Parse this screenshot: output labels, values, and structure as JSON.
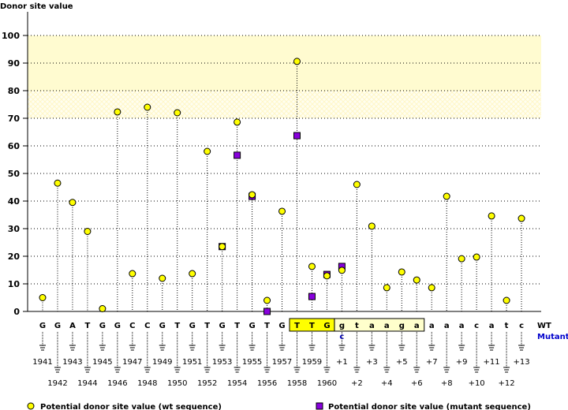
{
  "chart_data": {
    "type": "scatter",
    "title": "Donor site value",
    "ylabel": "Donor site value",
    "ylim": [
      0,
      100
    ],
    "yticks": [
      0,
      10,
      20,
      30,
      40,
      50,
      60,
      70,
      80,
      90,
      100
    ],
    "grid": true,
    "bands": [
      {
        "from": 80,
        "to": 100,
        "color": "#fffbd0"
      },
      {
        "from": 70,
        "to": 80,
        "color": "#fffde8",
        "pattern": "hatched"
      }
    ],
    "positions": [
      "1941",
      "1942",
      "1943",
      "1944",
      "1945",
      "1946",
      "1947",
      "1948",
      "1949",
      "1950",
      "1951",
      "1952",
      "1953",
      "1954",
      "1955",
      "1956",
      "1957",
      "1958",
      "1959",
      "1960",
      "+1",
      "+2",
      "+3",
      "+4",
      "+5",
      "+6",
      "+7",
      "+8",
      "+9",
      "+10",
      "+11",
      "+12",
      "+13"
    ],
    "wt_sequence": [
      "G",
      "G",
      "A",
      "T",
      "G",
      "G",
      "C",
      "C",
      "G",
      "T",
      "G",
      "T",
      "G",
      "T",
      "G",
      "T",
      "G",
      "T",
      "T",
      "G",
      "g",
      "t",
      "a",
      "a",
      "g",
      "a",
      "a",
      "a",
      "a",
      "c",
      "a",
      "t",
      "c"
    ],
    "mutant_sequence": {
      "+1": "c"
    },
    "exon_highlight": [
      "1958",
      "1959",
      "1960"
    ],
    "intron_highlight": [
      "+1",
      "+2",
      "+3",
      "+4",
      "+5",
      "+6"
    ],
    "row_labels": {
      "wt": "WT",
      "mutant": "Mutant"
    },
    "series": [
      {
        "name": "Potential donor site value (wt sequence)",
        "marker": "circle",
        "color": "#ffff00",
        "values": [
          5,
          46.5,
          39.5,
          29,
          1,
          72.3,
          13.7,
          74,
          12,
          72,
          13.7,
          58,
          23.5,
          68.6,
          42.3,
          4,
          36.3,
          90.6,
          16.3,
          12.9,
          14.9,
          46,
          30.9,
          8.6,
          14.3,
          11.4,
          8.6,
          41.7,
          19.1,
          19.7,
          34.6,
          4,
          33.7
        ]
      },
      {
        "name": "Potential donor site value (mutant sequence)",
        "marker": "square",
        "color": "#8800dd",
        "values": [
          null,
          null,
          null,
          null,
          null,
          null,
          null,
          null,
          null,
          null,
          null,
          null,
          23.5,
          56.6,
          41.7,
          0,
          null,
          63.7,
          5.4,
          13.4,
          16.3,
          null,
          null,
          null,
          null,
          null,
          null,
          null,
          null,
          null,
          null,
          null,
          null
        ]
      }
    ],
    "legend_placement": "bottom"
  }
}
